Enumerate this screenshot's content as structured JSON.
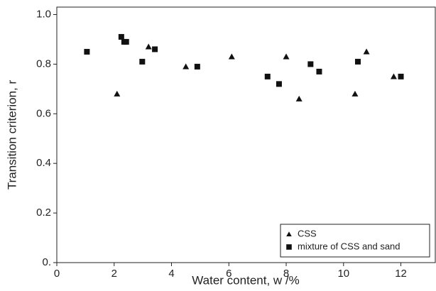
{
  "chart_data": {
    "type": "scatter",
    "xlabel": "Water content, w /%",
    "ylabel": "Transition criterion, r",
    "xlim": [
      0,
      13.2
    ],
    "ylim": [
      0,
      1.03
    ],
    "xticks": [
      0,
      2,
      4,
      6,
      8,
      10,
      12
    ],
    "yticks": [
      {
        "value": 0,
        "label": "0."
      },
      0.2,
      0.4,
      0.6,
      0.8,
      {
        "value": 1,
        "label": "1.0"
      }
    ],
    "legend": "lower right",
    "series": [
      {
        "name": "CSS",
        "marker": "triangle",
        "color": "#111111",
        "x": [
          2.1,
          3.2,
          4.5,
          6.1,
          8.0,
          8.45,
          10.4,
          10.8,
          11.75
        ],
        "values": [
          0.68,
          0.87,
          0.79,
          0.83,
          0.83,
          0.66,
          0.68,
          0.85,
          0.75
        ]
      },
      {
        "name": "mixture of CSS and sand",
        "marker": "square",
        "color": "#111111",
        "x": [
          1.05,
          2.25,
          2.35,
          2.42,
          2.98,
          3.42,
          4.9,
          7.35,
          7.75,
          8.85,
          9.15,
          10.5,
          12.0
        ],
        "values": [
          0.85,
          0.91,
          0.89,
          0.89,
          0.81,
          0.86,
          0.79,
          0.75,
          0.72,
          0.8,
          0.77,
          0.81,
          0.75
        ]
      }
    ]
  }
}
